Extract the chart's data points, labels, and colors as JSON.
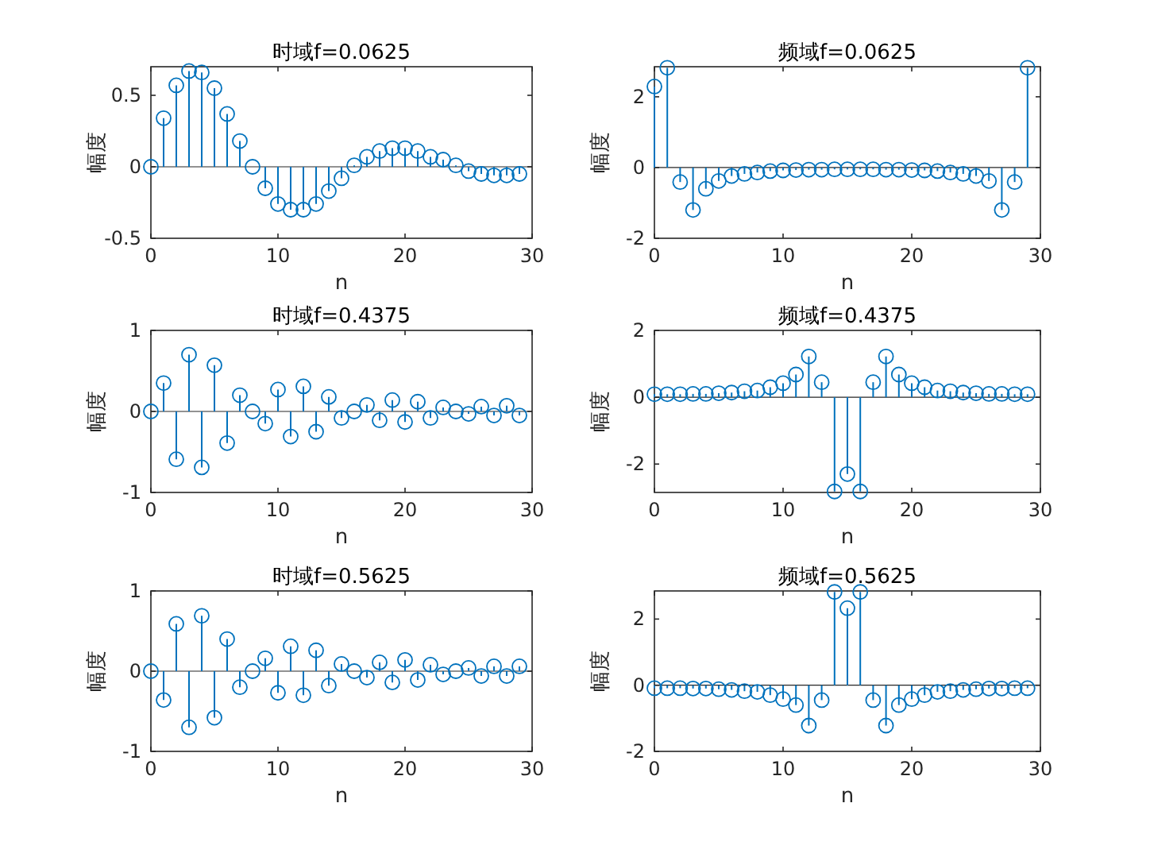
{
  "chart_data": [
    {
      "type": "lollipop",
      "title": "时域f=0.0625",
      "xlabel": "n",
      "ylabel": "幅度",
      "color": "#0072bd",
      "marker": "circle",
      "xlim": [
        0,
        30
      ],
      "xticks": [
        0,
        10,
        20,
        30
      ],
      "ylim": [
        -0.5,
        0.7
      ],
      "yticks": [
        -0.5,
        0,
        0.5
      ],
      "x": [
        0,
        1,
        2,
        3,
        4,
        5,
        6,
        7,
        8,
        9,
        10,
        11,
        12,
        13,
        14,
        15,
        16,
        17,
        18,
        19,
        20,
        21,
        22,
        23,
        24,
        25,
        26,
        27,
        28,
        29
      ],
      "values": [
        0,
        0.34,
        0.57,
        0.67,
        0.66,
        0.55,
        0.37,
        0.18,
        0,
        -0.15,
        -0.26,
        -0.3,
        -0.3,
        -0.26,
        -0.17,
        -0.08,
        0.01,
        0.07,
        0.11,
        0.13,
        0.13,
        0.11,
        0.07,
        0.05,
        0.01,
        -0.03,
        -0.05,
        -0.06,
        -0.06,
        -0.05
      ]
    },
    {
      "type": "lollipop",
      "title": "频域f=0.0625",
      "xlabel": "n",
      "ylabel": "幅度",
      "color": "#0072bd",
      "marker": "circle",
      "xlim": [
        0,
        30
      ],
      "xticks": [
        0,
        10,
        20,
        30
      ],
      "ylim": [
        -2,
        2.85
      ],
      "yticks": [
        -2,
        0,
        2
      ],
      "x": [
        0,
        1,
        2,
        3,
        4,
        5,
        6,
        7,
        8,
        9,
        10,
        11,
        12,
        13,
        14,
        15,
        16,
        17,
        18,
        19,
        20,
        21,
        22,
        23,
        24,
        25,
        26,
        27,
        28,
        29
      ],
      "values": [
        2.29,
        2.82,
        -0.41,
        -1.2,
        -0.6,
        -0.38,
        -0.24,
        -0.18,
        -0.14,
        -0.1,
        -0.08,
        -0.07,
        -0.06,
        -0.06,
        -0.05,
        -0.05,
        -0.05,
        -0.05,
        -0.06,
        -0.06,
        -0.07,
        -0.08,
        -0.1,
        -0.14,
        -0.18,
        -0.24,
        -0.38,
        -1.2,
        -0.41,
        2.82
      ]
    },
    {
      "type": "lollipop",
      "title": "时域f=0.4375",
      "xlabel": "n",
      "ylabel": "幅度",
      "color": "#0072bd",
      "marker": "circle",
      "xlim": [
        0,
        30
      ],
      "xticks": [
        0,
        10,
        20,
        30
      ],
      "ylim": [
        -1,
        1
      ],
      "yticks": [
        -1,
        0,
        1
      ],
      "x": [
        0,
        1,
        2,
        3,
        4,
        5,
        6,
        7,
        8,
        9,
        10,
        11,
        12,
        13,
        14,
        15,
        16,
        17,
        18,
        19,
        20,
        21,
        22,
        23,
        24,
        25,
        26,
        27,
        28,
        29
      ],
      "values": [
        0,
        0.35,
        -0.59,
        0.7,
        -0.69,
        0.57,
        -0.39,
        0.2,
        0,
        -0.15,
        0.27,
        -0.31,
        0.31,
        -0.25,
        0.18,
        -0.08,
        0,
        0.08,
        -0.11,
        0.14,
        -0.13,
        0.12,
        -0.08,
        0.05,
        0,
        -0.03,
        0.06,
        -0.05,
        0.07,
        -0.05
      ]
    },
    {
      "type": "lollipop",
      "title": "频域f=0.4375",
      "xlabel": "n",
      "ylabel": "幅度",
      "color": "#0072bd",
      "marker": "circle",
      "xlim": [
        0,
        30
      ],
      "xticks": [
        0,
        10,
        20,
        30
      ],
      "ylim": [
        -2.85,
        2
      ],
      "yticks": [
        -2,
        0,
        2
      ],
      "x": [
        0,
        1,
        2,
        3,
        4,
        5,
        6,
        7,
        8,
        9,
        10,
        11,
        12,
        13,
        14,
        15,
        16,
        17,
        18,
        19,
        20,
        21,
        22,
        23,
        24,
        25,
        26,
        27,
        28,
        29
      ],
      "values": [
        0.09,
        0.09,
        0.09,
        0.1,
        0.1,
        0.12,
        0.14,
        0.18,
        0.2,
        0.3,
        0.42,
        0.68,
        1.22,
        0.45,
        -2.82,
        -2.3,
        -2.82,
        0.45,
        1.22,
        0.68,
        0.42,
        0.3,
        0.2,
        0.18,
        0.14,
        0.12,
        0.1,
        0.1,
        0.09,
        0.09
      ]
    },
    {
      "type": "lollipop",
      "title": "时域f=0.5625",
      "xlabel": "n",
      "ylabel": "幅度",
      "color": "#0072bd",
      "marker": "circle",
      "xlim": [
        0,
        30
      ],
      "xticks": [
        0,
        10,
        20,
        30
      ],
      "ylim": [
        -1,
        1
      ],
      "yticks": [
        -1,
        0,
        1
      ],
      "x": [
        0,
        1,
        2,
        3,
        4,
        5,
        6,
        7,
        8,
        9,
        10,
        11,
        12,
        13,
        14,
        15,
        16,
        17,
        18,
        19,
        20,
        21,
        22,
        23,
        24,
        25,
        26,
        27,
        28,
        29
      ],
      "values": [
        0,
        -0.36,
        0.59,
        -0.7,
        0.69,
        -0.58,
        0.4,
        -0.2,
        0,
        0.16,
        -0.27,
        0.31,
        -0.3,
        0.26,
        -0.18,
        0.09,
        0,
        -0.08,
        0.11,
        -0.14,
        0.14,
        -0.11,
        0.08,
        -0.04,
        0,
        0.04,
        -0.06,
        0.06,
        -0.06,
        0.06
      ]
    },
    {
      "type": "lollipop",
      "title": "频域f=0.5625",
      "xlabel": "n",
      "ylabel": "幅度",
      "color": "#0072bd",
      "marker": "circle",
      "xlim": [
        0,
        30
      ],
      "xticks": [
        0,
        10,
        20,
        30
      ],
      "ylim": [
        -2,
        2.85
      ],
      "yticks": [
        -2,
        0,
        2
      ],
      "x": [
        0,
        1,
        2,
        3,
        4,
        5,
        6,
        7,
        8,
        9,
        10,
        11,
        12,
        13,
        14,
        15,
        16,
        17,
        18,
        19,
        20,
        21,
        22,
        23,
        24,
        25,
        26,
        27,
        28,
        29
      ],
      "values": [
        -0.09,
        -0.09,
        -0.09,
        -0.1,
        -0.1,
        -0.12,
        -0.14,
        -0.18,
        -0.2,
        -0.3,
        -0.42,
        -0.6,
        -1.22,
        -0.45,
        2.82,
        2.33,
        2.82,
        -0.45,
        -1.22,
        -0.6,
        -0.42,
        -0.3,
        -0.2,
        -0.18,
        -0.14,
        -0.12,
        -0.1,
        -0.1,
        -0.09,
        -0.09
      ]
    }
  ]
}
